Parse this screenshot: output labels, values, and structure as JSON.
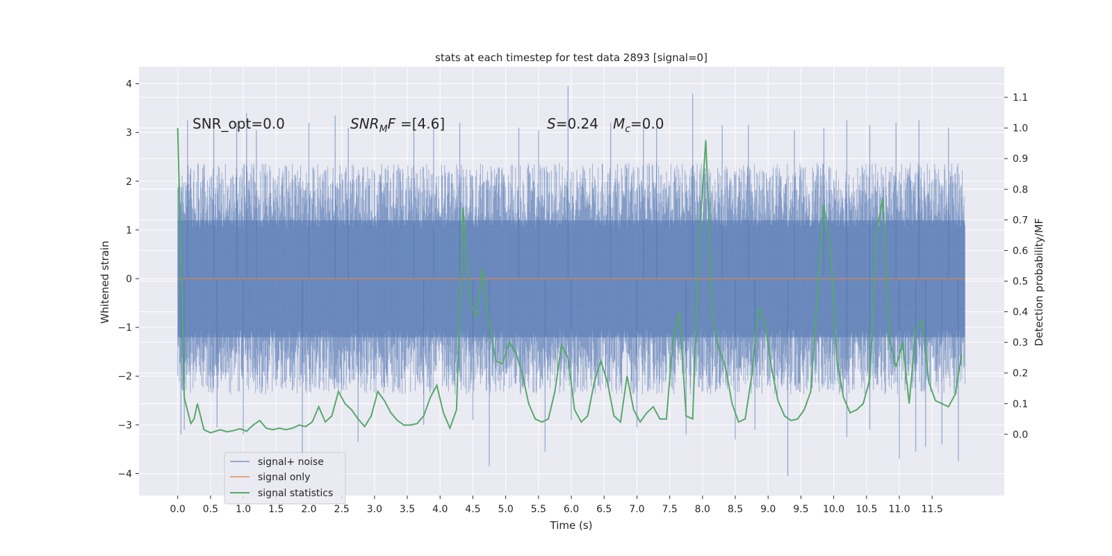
{
  "chart_data": {
    "type": "line",
    "title": "stats at each timestep for test data 2893 [signal=0]",
    "xlabel": "Time (s)",
    "ylabel_left": "Whitened strain",
    "ylabel_right": "Detection probability/MF",
    "xlim": [
      -0.59,
      12.6
    ],
    "ylim_left": [
      -4.45,
      4.35
    ],
    "ylim_right": [
      -0.2,
      1.2
    ],
    "x_ticks": [
      0.0,
      0.5,
      1.0,
      1.5,
      2.0,
      2.5,
      3.0,
      3.5,
      4.0,
      4.5,
      5.0,
      5.5,
      6.0,
      6.5,
      7.0,
      7.5,
      8.0,
      8.5,
      9.0,
      9.5,
      10.0,
      10.5,
      11.0,
      11.5
    ],
    "x_tick_labels": [
      "0.0",
      "0.5",
      "1.0",
      "1.5",
      "2.0",
      "2.5",
      "3.0",
      "3.5",
      "4.0",
      "4.5",
      "5.0",
      "5.5",
      "6.0",
      "6.5",
      "7.0",
      "7.5",
      "8.0",
      "8.5",
      "9.0",
      "9.5",
      "10.0",
      "10.5",
      "11.0",
      "11.5"
    ],
    "y_left_ticks": [
      4,
      3,
      2,
      1,
      0,
      -1,
      -2,
      -3,
      -4
    ],
    "y_left_tick_labels": [
      "4",
      "3",
      "2",
      "1",
      "0",
      "−1",
      "−2",
      "−3",
      "−4"
    ],
    "y_right_ticks": [
      1.1,
      1.0,
      0.9,
      0.8,
      0.7,
      0.6,
      0.5,
      0.4,
      0.3,
      0.2,
      0.1,
      0.0
    ],
    "y_right_tick_labels": [
      "1.1",
      "1.0",
      "0.9",
      "0.8",
      "0.7",
      "0.6",
      "0.5",
      "0.4",
      "0.3",
      "0.2",
      "0.1",
      "0.0"
    ],
    "annotations": {
      "snr_opt": "SNR_opt=0.0",
      "snr_mf_main": "SNR",
      "snr_mf_sub": "M",
      "snr_mf_tail": "F=[4.6]",
      "s_label": "S",
      "s_value": "=0.24",
      "mc_main": "M",
      "mc_sub": "c",
      "mc_value": "=0.0"
    },
    "legend": {
      "placement": "lower-left",
      "entries": [
        "signal+ noise",
        "signal only",
        "signal statistics"
      ]
    },
    "colors": {
      "noise": "#4c72b0",
      "signal": "#dd8452",
      "statistics": "#55a868",
      "background": "#eaeaf2",
      "grid": "#ffffff"
    },
    "series": [
      {
        "name": "signal+ noise",
        "axis": "left",
        "x_range": [
          0.0,
          12.0
        ],
        "typical_envelope": [
          -1.9,
          1.9
        ],
        "peak_values": [
          [
            0.15,
            3.25
          ],
          [
            0.55,
            3.1
          ],
          [
            0.9,
            3.2
          ],
          [
            1.05,
            3.4
          ],
          [
            1.2,
            3.05
          ],
          [
            2.0,
            3.2
          ],
          [
            2.4,
            3.35
          ],
          [
            2.6,
            3.1
          ],
          [
            3.6,
            3.05
          ],
          [
            3.9,
            3.15
          ],
          [
            4.3,
            3.2
          ],
          [
            5.2,
            3.1
          ],
          [
            5.5,
            3.05
          ],
          [
            5.95,
            3.95
          ],
          [
            6.6,
            3.2
          ],
          [
            7.1,
            3.15
          ],
          [
            7.3,
            3.1
          ],
          [
            7.85,
            3.8
          ],
          [
            8.3,
            3.15
          ],
          [
            8.7,
            3.15
          ],
          [
            9.4,
            3.05
          ],
          [
            9.85,
            3.1
          ],
          [
            10.2,
            3.25
          ],
          [
            10.55,
            3.15
          ],
          [
            10.95,
            3.2
          ],
          [
            11.3,
            3.25
          ],
          [
            11.75,
            3.1
          ],
          [
            0.05,
            -3.2
          ],
          [
            0.1,
            -3.1
          ],
          [
            0.6,
            -3.05
          ],
          [
            1.0,
            -3.2
          ],
          [
            1.9,
            -3.65
          ],
          [
            2.75,
            -3.35
          ],
          [
            3.75,
            -3.0
          ],
          [
            4.5,
            -2.9
          ],
          [
            4.75,
            -3.85
          ],
          [
            5.6,
            -3.55
          ],
          [
            6.0,
            -2.9
          ],
          [
            7.0,
            -3.05
          ],
          [
            7.75,
            -3.2
          ],
          [
            8.5,
            -3.3
          ],
          [
            8.8,
            -3.1
          ],
          [
            9.3,
            -4.05
          ],
          [
            10.2,
            -3.25
          ],
          [
            10.55,
            -3.1
          ],
          [
            11.0,
            -3.7
          ],
          [
            11.25,
            -3.55
          ],
          [
            11.4,
            -3.45
          ],
          [
            11.65,
            -3.4
          ],
          [
            11.9,
            -3.75
          ]
        ]
      },
      {
        "name": "signal only",
        "axis": "left",
        "x": [
          0.0,
          12.0
        ],
        "y": [
          0.0,
          0.0
        ]
      },
      {
        "name": "signal statistics",
        "axis": "right",
        "x": [
          0.0,
          0.1,
          0.2,
          0.25,
          0.3,
          0.4,
          0.5,
          0.55,
          0.65,
          0.75,
          0.85,
          0.95,
          1.05,
          1.15,
          1.25,
          1.35,
          1.45,
          1.55,
          1.65,
          1.75,
          1.85,
          1.95,
          2.05,
          2.15,
          2.25,
          2.35,
          2.45,
          2.55,
          2.65,
          2.75,
          2.85,
          2.95,
          3.05,
          3.15,
          3.25,
          3.35,
          3.45,
          3.55,
          3.65,
          3.75,
          3.85,
          3.95,
          4.05,
          4.15,
          4.25,
          4.35,
          4.45,
          4.55,
          4.65,
          4.75,
          4.85,
          4.95,
          5.05,
          5.15,
          5.25,
          5.35,
          5.45,
          5.55,
          5.65,
          5.75,
          5.85,
          5.95,
          6.05,
          6.15,
          6.25,
          6.35,
          6.45,
          6.55,
          6.65,
          6.75,
          6.85,
          6.95,
          7.05,
          7.15,
          7.25,
          7.35,
          7.45,
          7.55,
          7.65,
          7.75,
          7.85,
          7.95,
          8.05,
          8.15,
          8.25,
          8.35,
          8.45,
          8.55,
          8.65,
          8.75,
          8.85,
          8.95,
          9.05,
          9.15,
          9.25,
          9.35,
          9.45,
          9.55,
          9.65,
          9.75,
          9.85,
          9.95,
          10.05,
          10.15,
          10.25,
          10.35,
          10.45,
          10.55,
          10.65,
          10.75,
          10.85,
          10.95,
          11.05,
          11.15,
          11.25,
          11.35,
          11.45,
          11.55,
          11.65,
          11.75,
          11.85,
          11.95
        ],
        "y": [
          1.0,
          0.12,
          0.035,
          0.05,
          0.1,
          0.015,
          0.005,
          0.008,
          0.015,
          0.008,
          0.012,
          0.018,
          0.01,
          0.03,
          0.045,
          0.02,
          0.015,
          0.02,
          0.015,
          0.02,
          0.03,
          0.025,
          0.04,
          0.09,
          0.04,
          0.06,
          0.14,
          0.1,
          0.08,
          0.05,
          0.025,
          0.06,
          0.14,
          0.11,
          0.07,
          0.045,
          0.03,
          0.03,
          0.035,
          0.06,
          0.12,
          0.16,
          0.07,
          0.02,
          0.08,
          0.74,
          0.44,
          0.38,
          0.54,
          0.36,
          0.24,
          0.23,
          0.3,
          0.27,
          0.2,
          0.1,
          0.05,
          0.04,
          0.05,
          0.14,
          0.29,
          0.25,
          0.08,
          0.04,
          0.06,
          0.17,
          0.24,
          0.17,
          0.06,
          0.04,
          0.19,
          0.08,
          0.04,
          0.07,
          0.09,
          0.05,
          0.05,
          0.31,
          0.4,
          0.06,
          0.05,
          0.64,
          0.96,
          0.39,
          0.28,
          0.22,
          0.1,
          0.04,
          0.05,
          0.19,
          0.41,
          0.37,
          0.22,
          0.11,
          0.06,
          0.045,
          0.05,
          0.08,
          0.14,
          0.45,
          0.75,
          0.6,
          0.24,
          0.12,
          0.07,
          0.08,
          0.1,
          0.18,
          0.66,
          0.77,
          0.31,
          0.22,
          0.3,
          0.1,
          0.34,
          0.37,
          0.17,
          0.11,
          0.1,
          0.09,
          0.13,
          0.26
        ]
      }
    ]
  }
}
